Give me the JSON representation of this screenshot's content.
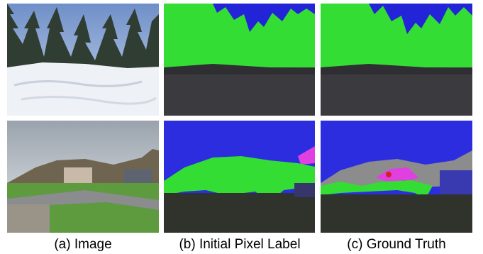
{
  "figure": {
    "captions": [
      "(a) Image",
      "(b) Initial Pixel Label",
      "(c) Ground Truth"
    ]
  }
}
